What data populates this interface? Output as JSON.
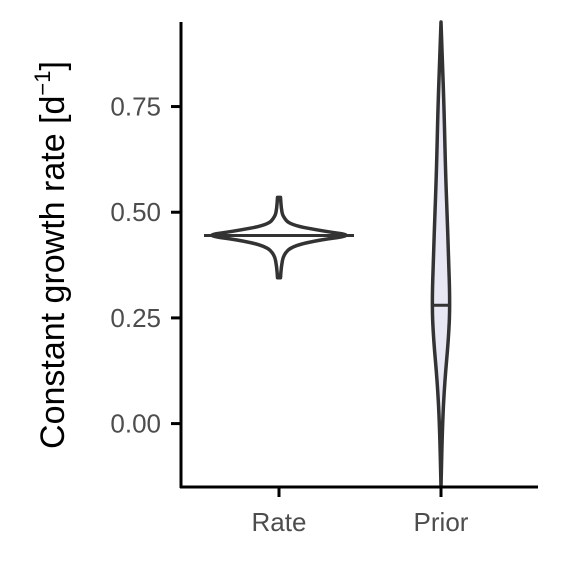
{
  "chart_data": {
    "type": "violin",
    "title": "",
    "xlabel": "",
    "ylabel": "Constant growth rate [d",
    "ylabel_superscript": "−1",
    "ylabel_suffix": "]",
    "ylim": [
      -0.15,
      0.95
    ],
    "yticks": [
      0.0,
      0.25,
      0.5,
      0.75
    ],
    "ytick_labels": [
      "0.00",
      "0.25",
      "0.50",
      "0.75"
    ],
    "categories": [
      "Rate",
      "Prior"
    ],
    "grid": false,
    "legend": "none",
    "series": [
      {
        "category": "Rate",
        "median": 0.445,
        "min": 0.345,
        "max": 0.535,
        "fill": "#ffffff",
        "density": [
          [
            0.345,
            0.02
          ],
          [
            0.37,
            0.03
          ],
          [
            0.4,
            0.06
          ],
          [
            0.42,
            0.18
          ],
          [
            0.435,
            0.55
          ],
          [
            0.445,
            1.0
          ],
          [
            0.455,
            0.6
          ],
          [
            0.47,
            0.15
          ],
          [
            0.49,
            0.05
          ],
          [
            0.51,
            0.03
          ],
          [
            0.535,
            0.02
          ]
        ]
      },
      {
        "category": "Prior",
        "median": 0.28,
        "min": -0.15,
        "max": 0.95,
        "fill": "#e8e8f5",
        "density": [
          [
            -0.15,
            0.0
          ],
          [
            0.0,
            0.02
          ],
          [
            0.1,
            0.05
          ],
          [
            0.2,
            0.1
          ],
          [
            0.28,
            0.12
          ],
          [
            0.4,
            0.1
          ],
          [
            0.5,
            0.08
          ],
          [
            0.6,
            0.06
          ],
          [
            0.75,
            0.04
          ],
          [
            0.85,
            0.02
          ],
          [
            0.95,
            0.0
          ]
        ]
      }
    ]
  },
  "colors": {
    "line": "#333333",
    "axis": "#000000",
    "tick_text": "#4d4d4d"
  }
}
